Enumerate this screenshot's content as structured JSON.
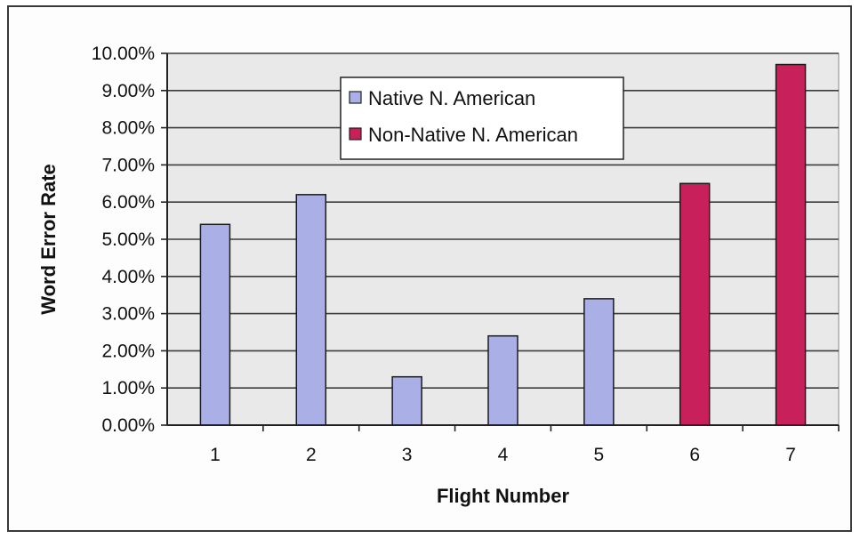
{
  "chart_data": {
    "type": "bar",
    "categories": [
      "1",
      "2",
      "3",
      "4",
      "5",
      "6",
      "7"
    ],
    "series": [
      {
        "name": "Native N. American",
        "color": "#aab0e6",
        "values": [
          5.4,
          6.2,
          1.3,
          2.4,
          3.4,
          null,
          null
        ]
      },
      {
        "name": "Non-Native N. American",
        "color": "#c8205a",
        "values": [
          null,
          null,
          null,
          null,
          null,
          6.5,
          9.7
        ]
      }
    ],
    "yticks": [
      "0.00%",
      "1.00%",
      "2.00%",
      "3.00%",
      "4.00%",
      "5.00%",
      "6.00%",
      "7.00%",
      "8.00%",
      "9.00%",
      "10.00%"
    ],
    "ylim": [
      0,
      10
    ],
    "xlabel": "Flight Number",
    "ylabel": "Word Error Rate",
    "grid": true,
    "legend_position": "top-center",
    "plot_background": "#e9e9e9"
  }
}
